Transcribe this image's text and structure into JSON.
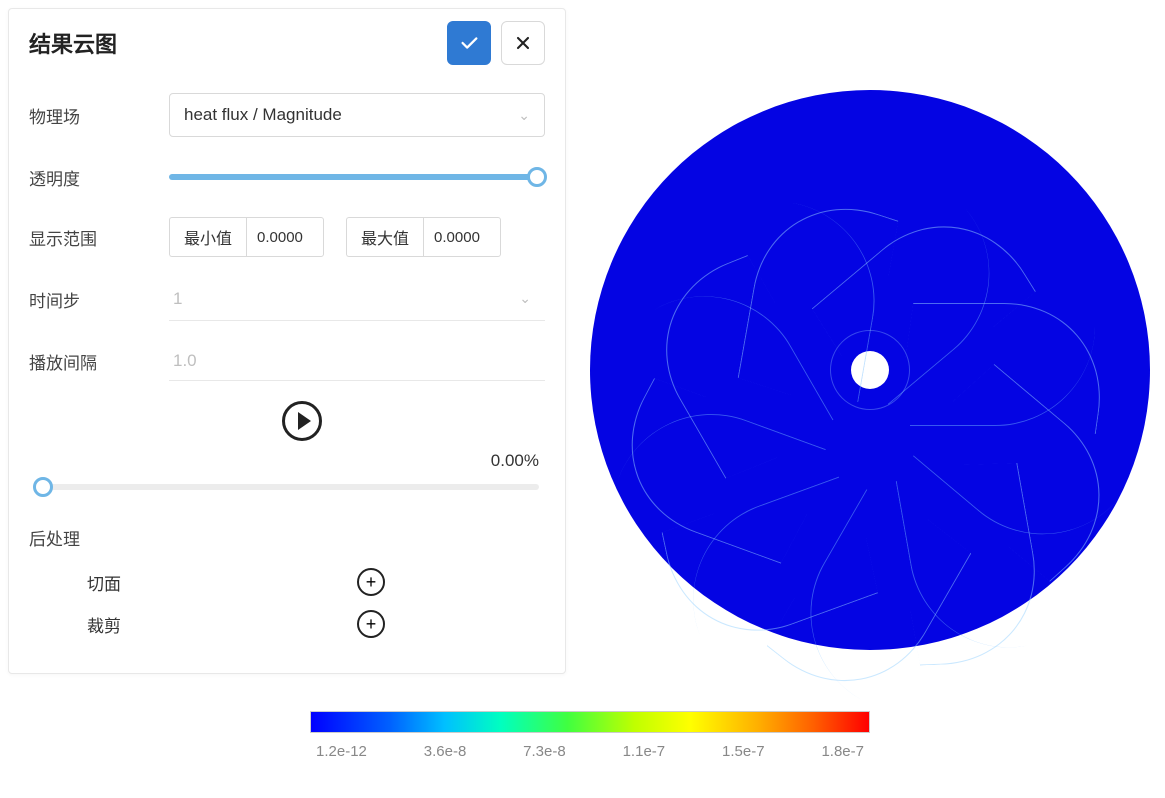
{
  "panel": {
    "title": "结果云图",
    "fields": {
      "physics_label": "物理场",
      "physics_value": "heat flux / Magnitude",
      "opacity_label": "透明度",
      "opacity_percent": 100,
      "range_label": "显示范围",
      "range_min_label": "最小值",
      "range_min_value": "0.0000",
      "range_max_label": "最大值",
      "range_max_value": "0.0000",
      "timestep_label": "时间步",
      "timestep_value": "1",
      "interval_label": "播放间隔",
      "interval_value": "1.0",
      "progress_text": "0.00%",
      "progress_pos": 0
    },
    "post": {
      "title": "后处理",
      "section_label": "切面",
      "crop_label": "裁剪"
    }
  },
  "viz": {
    "disc_color": "#0404e3",
    "edge_color": "rgba(150,210,255,0.5)",
    "blade_count": 9,
    "center_hole_color": "#ffffff"
  },
  "colorbar": {
    "gradient_stops": [
      "#0000ff",
      "#0060ff",
      "#00c0ff",
      "#00ffc0",
      "#40ff40",
      "#c0ff00",
      "#ffff00",
      "#ffb000",
      "#ff6000",
      "#ff0000"
    ],
    "ticks": [
      "1.2e-12",
      "3.6e-8",
      "7.3e-8",
      "1.1e-7",
      "1.5e-7",
      "1.8e-7"
    ]
  }
}
